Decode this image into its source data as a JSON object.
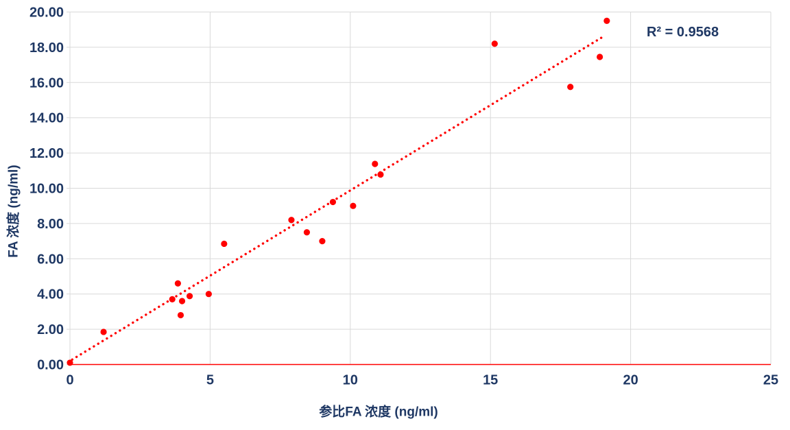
{
  "chart_data": {
    "type": "scatter",
    "title": "",
    "xlabel": "参比FA 浓度 (ng/ml)",
    "ylabel": "FA 浓度 (ng/ml)",
    "annotation": "R² = 0.9568",
    "xlim": [
      0,
      25
    ],
    "ylim": [
      0,
      20
    ],
    "grid": true,
    "legend_position": "none",
    "x_ticks": [
      {
        "value": 0,
        "label": "0"
      },
      {
        "value": 5,
        "label": "5"
      },
      {
        "value": 10,
        "label": "10"
      },
      {
        "value": 15,
        "label": "15"
      },
      {
        "value": 20,
        "label": "20"
      },
      {
        "value": 25,
        "label": "25"
      }
    ],
    "y_ticks": [
      {
        "value": 0,
        "label": "0.00"
      },
      {
        "value": 2,
        "label": "2.00"
      },
      {
        "value": 4,
        "label": "4.00"
      },
      {
        "value": 6,
        "label": "6.00"
      },
      {
        "value": 8,
        "label": "8.00"
      },
      {
        "value": 10,
        "label": "10.00"
      },
      {
        "value": 12,
        "label": "12.00"
      },
      {
        "value": 14,
        "label": "14.00"
      },
      {
        "value": 16,
        "label": "16.00"
      },
      {
        "value": 18,
        "label": "18.00"
      },
      {
        "value": 20,
        "label": "20.00"
      }
    ],
    "points": [
      [
        0,
        0.1
      ],
      [
        1.2,
        1.85
      ],
      [
        3.65,
        3.7
      ],
      [
        3.85,
        4.6
      ],
      [
        3.95,
        2.8
      ],
      [
        4.0,
        3.6
      ],
      [
        4.27,
        3.88
      ],
      [
        4.95,
        4.0
      ],
      [
        5.5,
        6.85
      ],
      [
        7.9,
        8.2
      ],
      [
        8.45,
        7.5
      ],
      [
        9.0,
        7.0
      ],
      [
        9.38,
        9.22
      ],
      [
        10.1,
        9.0
      ],
      [
        10.88,
        11.38
      ],
      [
        11.08,
        10.78
      ],
      [
        15.15,
        18.2
      ],
      [
        17.85,
        15.75
      ],
      [
        18.9,
        17.45
      ],
      [
        19.15,
        19.5
      ]
    ],
    "trendline": {
      "style": "dotted",
      "x1": 0.08,
      "y1": 0.28,
      "x2": 19.1,
      "y2": 18.68
    },
    "colors": {
      "series": "#FF0000",
      "grid": "#D9D9D9",
      "axis_text": "#1F3864",
      "x_axis_line": "#FF0000"
    }
  }
}
